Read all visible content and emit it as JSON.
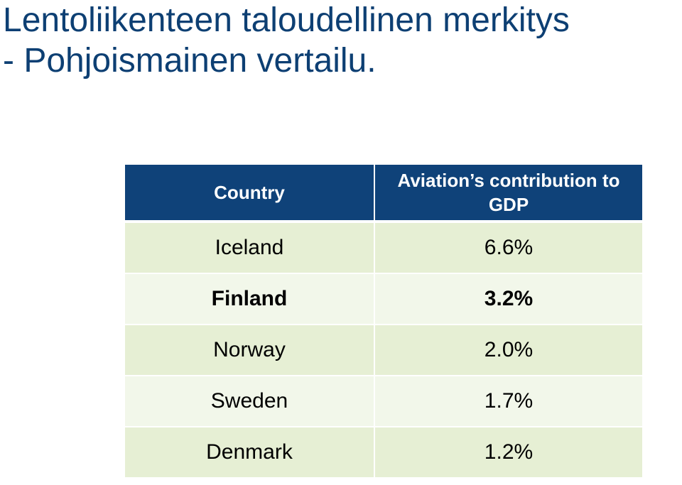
{
  "slide": {
    "title_line1": "Lentoliikenteen taloudellinen merkitys",
    "title_line2": "- Pohjoismainen vertailu."
  },
  "table": {
    "headers": [
      "Country",
      "Aviation’s contribution to GDP"
    ],
    "rows": [
      {
        "country": "Iceland",
        "value": "6.6%",
        "bold": false
      },
      {
        "country": "Finland",
        "value": "3.2%",
        "bold": true
      },
      {
        "country": "Norway",
        "value": "2.0%",
        "bold": false
      },
      {
        "country": "Sweden",
        "value": "1.7%",
        "bold": false
      },
      {
        "country": "Denmark",
        "value": "1.2%",
        "bold": false
      }
    ]
  },
  "colors": {
    "title": "#0d3f73",
    "header_bg": "#0f4279",
    "row_odd": "#e6efd4",
    "row_even": "#f2f7ea"
  }
}
